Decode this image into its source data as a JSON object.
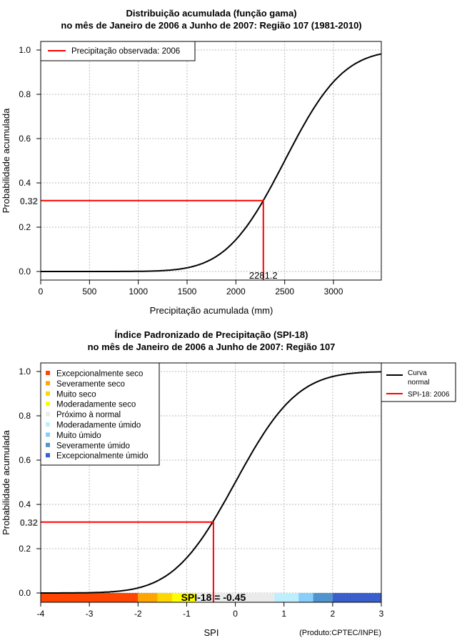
{
  "chart_data": [
    {
      "type": "line",
      "title": "Distribuição acumulada (função gama)",
      "subtitle": "no mês de Janeiro de 2006 a Junho de 2007: Região 107 (1981-2010)",
      "xlabel": "Precipitação acumulada (mm)",
      "ylabel": "Probabilidade acumulada",
      "xlim": [
        0,
        3490
      ],
      "ylim": [
        0,
        1
      ],
      "xticks": [
        "0",
        "500",
        "1000",
        "1500",
        "2000",
        "2500",
        "3000"
      ],
      "yticks": [
        "0.0",
        "0.2",
        "0.4",
        "0.6",
        "0.8",
        "1.0"
      ],
      "grid": true,
      "legend": {
        "placement": "top-left",
        "entries": [
          "Precipitação observada: 2006"
        ]
      },
      "series": [
        {
          "name": "Distribuição gama",
          "x": [
            0,
            500,
            1000,
            1500,
            1750,
            2000,
            2281.2,
            2500,
            2750,
            3000,
            3250,
            3490
          ],
          "y": [
            0,
            0,
            0.001,
            0.017,
            0.06,
            0.14,
            0.32,
            0.5,
            0.7,
            0.86,
            0.94,
            0.97
          ]
        }
      ],
      "marker": {
        "x": 2281.2,
        "y": 0.32,
        "x_label": "2281.2",
        "y_label": "0.32",
        "color": "#ff0000"
      }
    },
    {
      "type": "line",
      "title": "Índice Padronizado de Precipitação (SPI-18)",
      "subtitle": "no mês de Janeiro de 2006 a Junho de 2007: Região 107",
      "xlabel": "SPI",
      "ylabel": "Probabilidade acumulada",
      "xlim": [
        -4,
        3
      ],
      "ylim": [
        0,
        1
      ],
      "xticks": [
        "-4",
        "-3",
        "-2",
        "-1",
        "0",
        "1",
        "2",
        "3"
      ],
      "yticks": [
        "0.0",
        "0.2",
        "0.4",
        "0.6",
        "0.8",
        "1.0"
      ],
      "grid": true,
      "legend_categories": [
        {
          "label": "Excepcionalmente seco",
          "color": "#ff4500",
          "from": -4,
          "to": -2
        },
        {
          "label": "Severamente seco",
          "color": "#ffa500",
          "from": -2,
          "to": -1.6
        },
        {
          "label": "Muito seco",
          "color": "#ffd700",
          "from": -1.6,
          "to": -1.3
        },
        {
          "label": "Moderadamente seco",
          "color": "#ffff00",
          "from": -1.3,
          "to": -0.8
        },
        {
          "label": "Próximo à normal",
          "color": "#ebebeb",
          "from": -0.8,
          "to": 0.8
        },
        {
          "label": "Moderadamente úmido",
          "color": "#bfefff",
          "from": 0.8,
          "to": 1.3
        },
        {
          "label": "Muito úmido",
          "color": "#87cefa",
          "from": 1.3,
          "to": 1.6
        },
        {
          "label": "Severamente úmido",
          "color": "#4f94cd",
          "from": 1.6,
          "to": 2
        },
        {
          "label": "Excepcionalmente úmido",
          "color": "#3a5fcd",
          "from": 2,
          "to": 3
        }
      ],
      "legend_series": [
        "Curva normal",
        "SPI-18: 2006"
      ],
      "marker": {
        "x": -0.45,
        "y": 0.32,
        "y_label": "0.32",
        "color": "#ff0000"
      },
      "annotation": "SPI-18 = -0.45",
      "credit": "(Produto:CPTEC/INPE)"
    }
  ]
}
